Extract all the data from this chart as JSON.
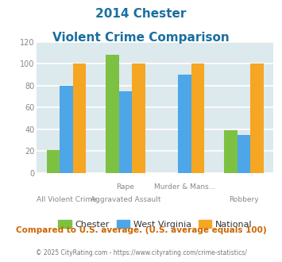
{
  "title_line1": "2014 Chester",
  "title_line2": "Violent Crime Comparison",
  "cat_labels_top": [
    "",
    "Rape",
    "Murder & Mans...",
    ""
  ],
  "cat_labels_bot": [
    "All Violent Crime",
    "Aggravated Assault",
    "",
    "Robbery"
  ],
  "series": {
    "Chester": [
      21,
      108,
      0,
      39
    ],
    "West Virginia": [
      80,
      75,
      90,
      35
    ],
    "National": [
      100,
      100,
      100,
      100
    ]
  },
  "colors": {
    "Chester": "#7dc142",
    "West Virginia": "#4da6e8",
    "National": "#f5a623"
  },
  "ylim": [
    0,
    120
  ],
  "yticks": [
    0,
    20,
    40,
    60,
    80,
    100,
    120
  ],
  "background_color": "#dce9ed",
  "grid_color": "#ffffff",
  "title_color": "#1a6fa0",
  "footer_text": "Compared to U.S. average. (U.S. average equals 100)",
  "copyright_text": "© 2025 CityRating.com - https://www.cityrating.com/crime-statistics/",
  "footer_color": "#cc6600",
  "copyright_color": "#777777"
}
